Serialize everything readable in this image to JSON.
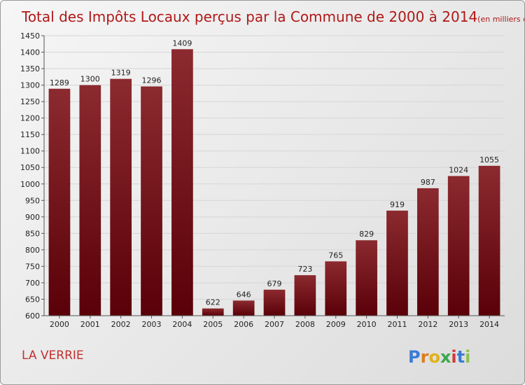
{
  "chart_data": {
    "type": "bar",
    "title": "Total des Impôts Locaux perçus par la Commune de 2000 à 2014",
    "unit_label": "(en milliers d'€)",
    "categories": [
      "2000",
      "2001",
      "2002",
      "2003",
      "2004",
      "2005",
      "2006",
      "2007",
      "2008",
      "2009",
      "2010",
      "2011",
      "2012",
      "2013",
      "2014"
    ],
    "values": [
      1289,
      1300,
      1319,
      1296,
      1409,
      622,
      646,
      679,
      723,
      765,
      829,
      919,
      987,
      1024,
      1055
    ],
    "ylim": [
      600,
      1450
    ],
    "yticks": [
      600,
      650,
      700,
      750,
      800,
      850,
      900,
      950,
      1000,
      1050,
      1100,
      1150,
      1200,
      1250,
      1300,
      1350,
      1400,
      1450
    ],
    "grid": true,
    "bar_color_top": "#8b2a2f",
    "bar_color_bottom": "#5a0008"
  },
  "commune": "LA VERRIE",
  "logo": {
    "letters": [
      "P",
      "r",
      "o",
      "x",
      "i",
      "t",
      "i"
    ],
    "colors": [
      "#3a7bd5",
      "#e07b1a",
      "#e0b21a",
      "#3aa84a",
      "#d33a3a",
      "#3a7bd5",
      "#8bc34a"
    ]
  }
}
